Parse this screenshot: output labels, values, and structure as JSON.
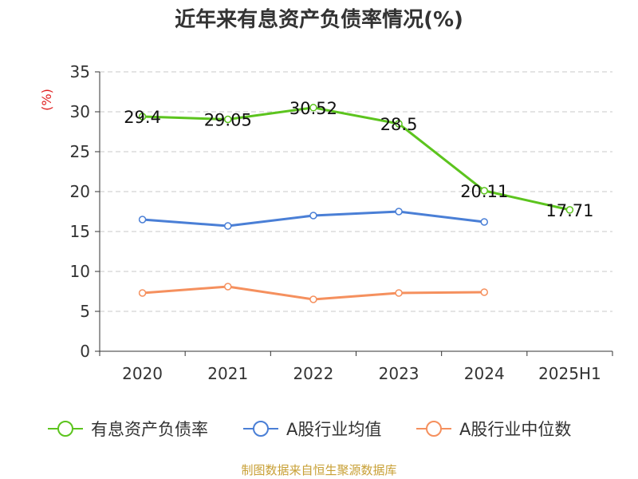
{
  "chart_data": {
    "type": "line",
    "title": "近年来有息资产负债率情况(%)",
    "ylabel": "(%)",
    "xlabel": "",
    "ylim": [
      0,
      35
    ],
    "yticks": [
      0,
      5,
      10,
      15,
      20,
      25,
      30,
      35
    ],
    "grid": true,
    "legend_position": "bottom",
    "categories": [
      "2020",
      "2021",
      "2022",
      "2023",
      "2024",
      "2025H1"
    ],
    "series": [
      {
        "name": "有息资产负债率",
        "color": "#5cc41e",
        "values": [
          29.4,
          29.05,
          30.52,
          28.5,
          20.11,
          17.71
        ],
        "labels": [
          "29.4",
          "29.05",
          "30.52",
          "28.5",
          "20.11",
          "17.71"
        ]
      },
      {
        "name": "A股行业均值",
        "color": "#4a7fd6",
        "values": [
          16.5,
          15.7,
          17.0,
          17.5,
          16.2,
          null
        ]
      },
      {
        "name": "A股行业中位数",
        "color": "#f5905e",
        "values": [
          7.3,
          8.1,
          6.5,
          7.3,
          7.4,
          null
        ]
      }
    ]
  },
  "footer": "制图数据来自恒生聚源数据库"
}
